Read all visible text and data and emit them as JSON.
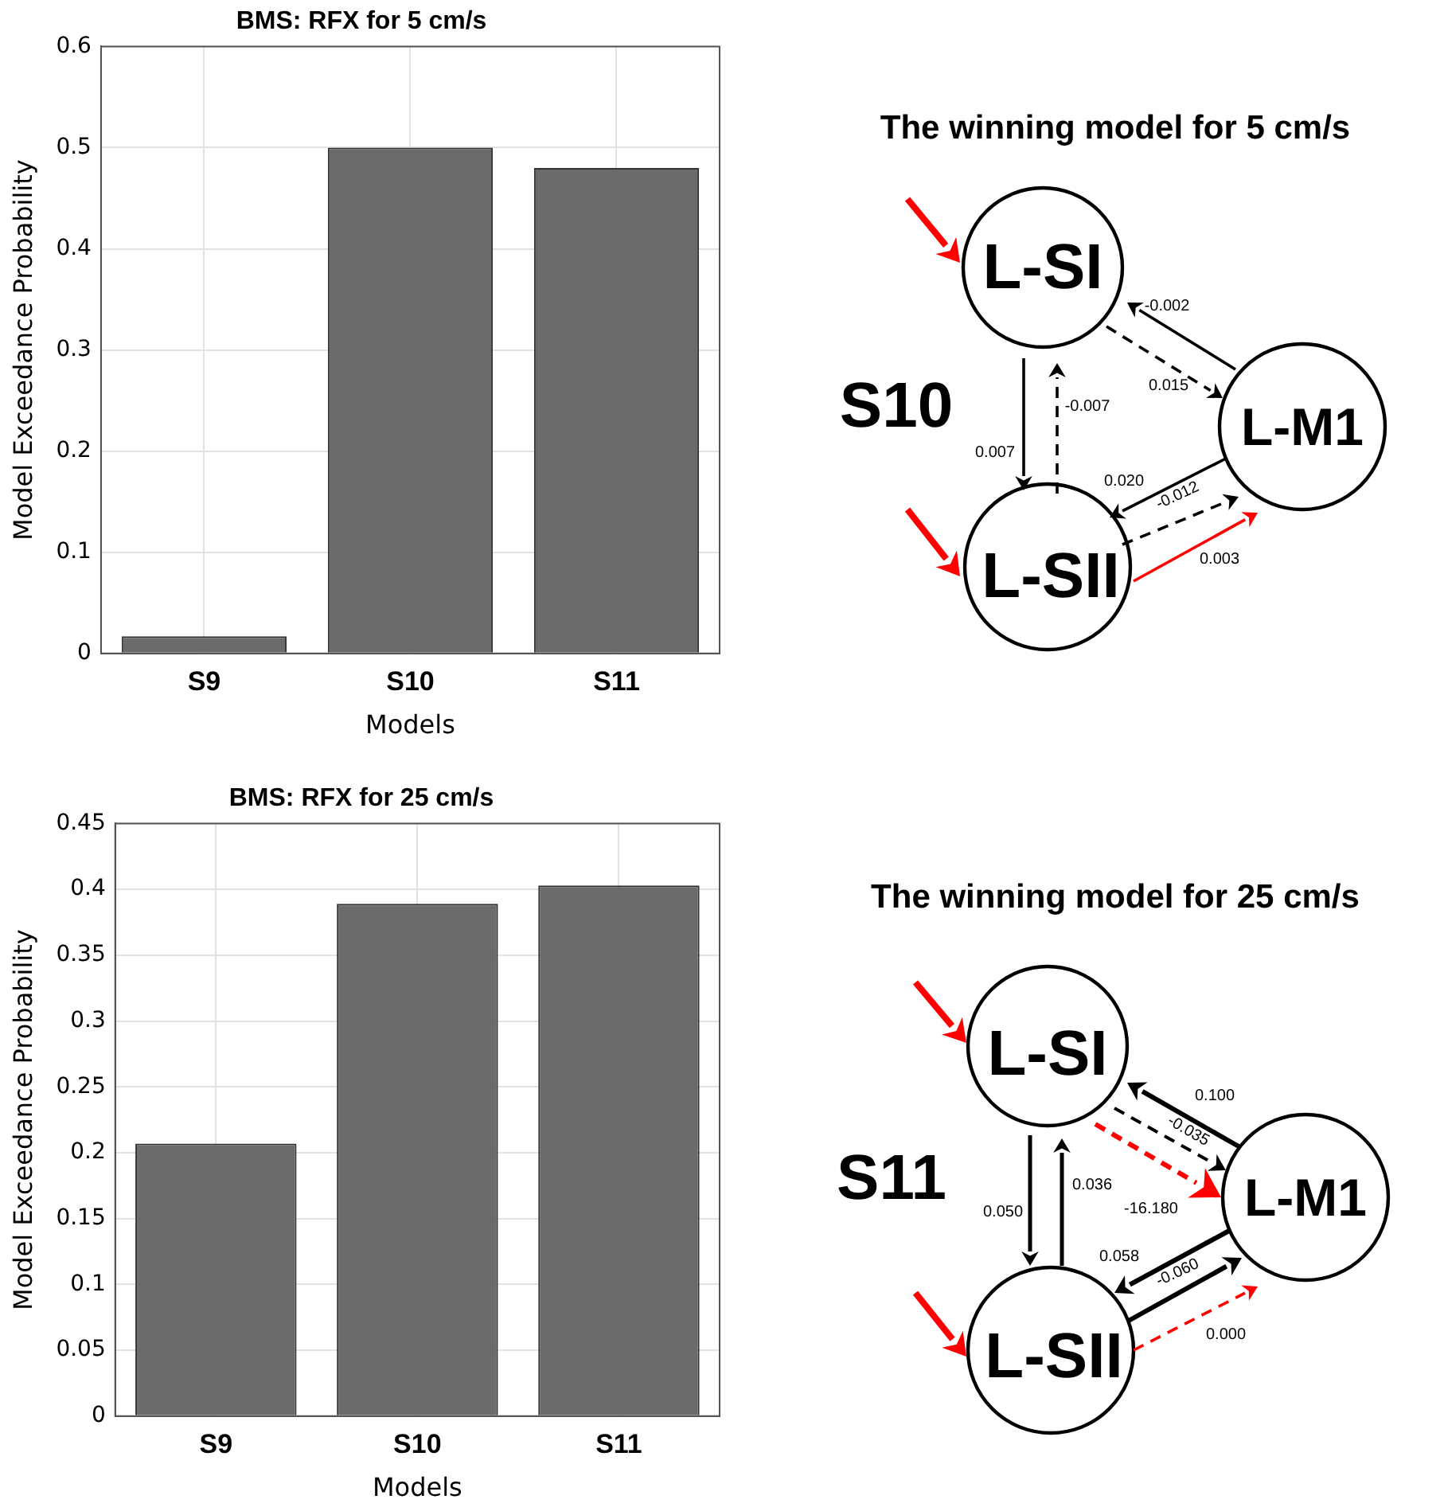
{
  "chart_data": [
    {
      "type": "bar",
      "title": "BMS: RFX for 5 cm/s",
      "xlabel": "Models",
      "ylabel": "Model Exceedance Probability",
      "categories": [
        "S9",
        "S10",
        "S11"
      ],
      "values": [
        0.017,
        0.5,
        0.48
      ],
      "color": "#6b6b6b",
      "ylim": [
        0,
        0.6
      ],
      "yticks": [
        0,
        0.1,
        0.2,
        0.3,
        0.4,
        0.5,
        0.6
      ],
      "grid": true
    },
    {
      "type": "other",
      "title": "The winning model for 5 cm/s",
      "annotations": [
        "S10",
        "L-SI",
        "L-M1",
        "L-SII",
        "-0.002",
        "0.015",
        "-0.007",
        "0.007",
        "0.020",
        "-0.012",
        "0.003"
      ]
    },
    {
      "type": "bar",
      "title": "BMS: RFX for 25 cm/s",
      "xlabel": "Models",
      "ylabel": "Model Exceedance Probability",
      "categories": [
        "S9",
        "S10",
        "S11"
      ],
      "values": [
        0.207,
        0.389,
        0.403
      ],
      "color": "#6b6b6b",
      "ylim": [
        0,
        0.45
      ],
      "yticks": [
        0,
        0.05,
        0.1,
        0.15,
        0.2,
        0.25,
        0.3,
        0.35,
        0.4,
        0.45
      ],
      "grid": true
    },
    {
      "type": "other",
      "title": "The winning model for 25 cm/s",
      "annotations": [
        "S11",
        "L-SI",
        "L-M1",
        "L-SII",
        "0.100",
        "-0.035",
        "-16.180",
        "0.036",
        "0.050",
        "0.058",
        "-0.060",
        "0.000"
      ]
    }
  ]
}
